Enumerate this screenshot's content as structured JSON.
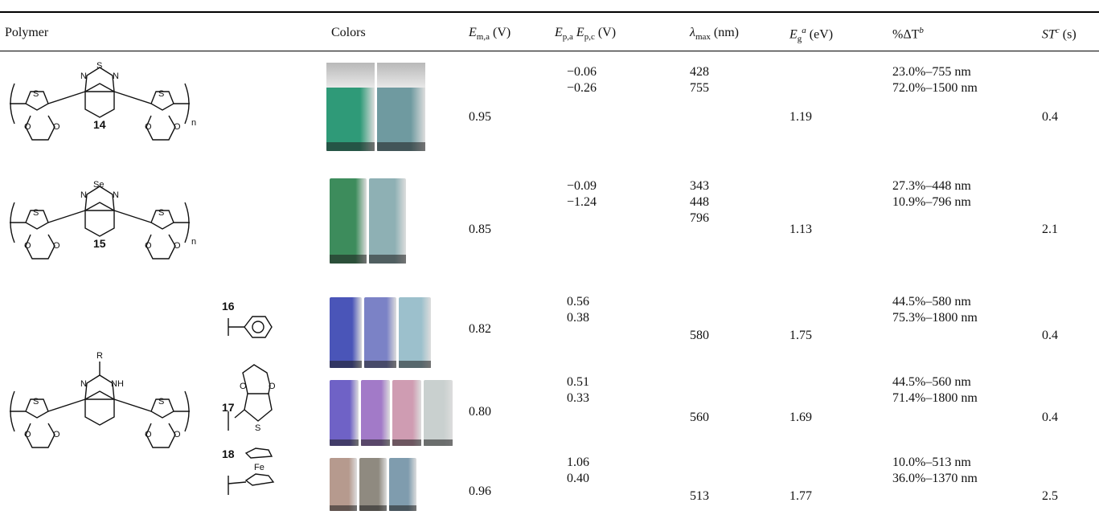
{
  "header": {
    "polymer": "Polymer",
    "colors": "Colors",
    "ema": "E",
    "ema_sub": "m,a",
    "ema_unit": " (V)",
    "ep_a": "E",
    "ep_a_sub": "p,a",
    "ep_c": "E",
    "ep_c_sub": "p,c",
    "ep_unit": " (V)",
    "lambda": "λ",
    "lambda_sub": "max",
    "lambda_unit": " (nm)",
    "eg": "E",
    "eg_sub": "g",
    "eg_sup": "a",
    "eg_unit": " (eV)",
    "dt": "%ΔT",
    "dt_sup": "b",
    "st": "ST",
    "st_sup": "c",
    "st_unit": " (s)"
  },
  "rows": [
    {
      "id": "14",
      "ema": "0.95",
      "ep": [
        "−0.06",
        "−0.26"
      ],
      "lmax": [
        "428",
        "755"
      ],
      "eg": "1.19",
      "dt": [
        "23.0%–755 nm",
        "72.0%–1500 nm"
      ],
      "st": "0.4",
      "vials": [
        "#2f9a78",
        "#6f9aa0"
      ]
    },
    {
      "id": "15",
      "ema": "0.85",
      "ep": [
        "−0.09",
        "−1.24"
      ],
      "lmax": [
        "343",
        "448",
        "796"
      ],
      "eg": "1.13",
      "dt": [
        "27.3%–448 nm",
        "10.9%–796 nm"
      ],
      "st": "2.1",
      "vials": [
        "#3d8c5c",
        "#8eb0b4"
      ]
    },
    {
      "id": "16",
      "ema": "0.82",
      "ep": [
        "0.56",
        "0.38"
      ],
      "lmax": [
        "580"
      ],
      "eg": "1.75",
      "dt": [
        "44.5%–580 nm",
        "75.3%–1800 nm"
      ],
      "st": "0.4",
      "vials": [
        "#4a55b8",
        "#7b82c6",
        "#9cc0cc"
      ]
    },
    {
      "id": "17",
      "ema": "0.80",
      "ep": [
        "0.51",
        "0.33"
      ],
      "lmax": [
        "560"
      ],
      "eg": "1.69",
      "dt": [
        "44.5%–560 nm",
        "71.4%–1800 nm"
      ],
      "st": "0.4",
      "vials": [
        "#6f62c6",
        "#a27ac8",
        "#cf9cb2",
        "#c9d0cf"
      ]
    },
    {
      "id": "18",
      "ema": "0.96",
      "ep": [
        "1.06",
        "0.40"
      ],
      "lmax": [
        "513"
      ],
      "eg": "1.77",
      "dt": [
        "10.0%–513 nm",
        "36.0%–1370 nm"
      ],
      "st": "2.5",
      "vials": [
        "#b69a8e",
        "#8f8a80",
        "#7f9cae"
      ]
    }
  ],
  "structure_labels": {
    "s": "S",
    "o": "O",
    "n": "N",
    "nh": "NH",
    "se": "Se",
    "r": "R",
    "fe": "Fe",
    "nsub": "n"
  }
}
